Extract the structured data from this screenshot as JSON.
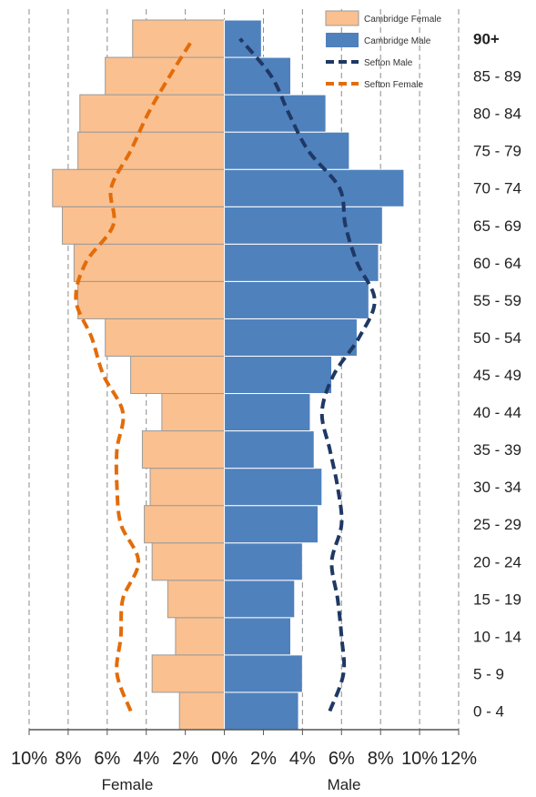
{
  "chart_data": {
    "type": "bar",
    "subtype": "population-pyramid",
    "title": "",
    "xlabel_left": "Female",
    "xlabel_right": "Male",
    "x_tick_labels": [
      "10%",
      "8%",
      "6%",
      "4%",
      "2%",
      "0%",
      "2%",
      "4%",
      "6%",
      "8%",
      "10%",
      "12%"
    ],
    "x_range_percent": [
      -10,
      12
    ],
    "categories": [
      "0 - 4",
      "5 - 9",
      "10 - 14",
      "15 - 19",
      "20 - 24",
      "25 - 29",
      "30 - 34",
      "35 - 39",
      "40 - 44",
      "45 - 49",
      "50 - 54",
      "55 - 59",
      "60 - 64",
      "65 - 69",
      "70 - 74",
      "75 - 79",
      "80 - 84",
      "85 - 89",
      "90+"
    ],
    "grid": "vertical dashed",
    "legend_position": "top-right",
    "series": [
      {
        "name": "Cambridge Female",
        "kind": "bar",
        "side": "left",
        "color": "#FAC090",
        "values": [
          2.3,
          3.7,
          2.5,
          2.9,
          3.7,
          4.1,
          3.8,
          4.2,
          3.2,
          4.8,
          6.1,
          7.5,
          7.7,
          8.3,
          8.8,
          7.5,
          7.4,
          6.1,
          4.7
        ]
      },
      {
        "name": "Cambridge Male",
        "kind": "bar",
        "side": "right",
        "color": "#4F81BD",
        "values": [
          3.8,
          4.0,
          3.4,
          3.6,
          4.0,
          4.8,
          5.0,
          4.6,
          4.4,
          5.5,
          6.8,
          7.4,
          7.9,
          8.1,
          9.2,
          6.4,
          5.2,
          3.4,
          1.9
        ]
      },
      {
        "name": "Sefton Male",
        "kind": "line",
        "side": "right",
        "color": "#1F3864",
        "values": [
          5.4,
          6.1,
          6.0,
          5.8,
          5.5,
          6.0,
          5.8,
          5.4,
          5.0,
          5.6,
          6.9,
          7.7,
          6.8,
          6.2,
          5.9,
          4.3,
          3.3,
          2.4,
          0.8
        ]
      },
      {
        "name": "Sefton Female",
        "kind": "line",
        "side": "left",
        "color": "#E36C09",
        "values": [
          4.8,
          5.5,
          5.3,
          5.2,
          4.4,
          5.3,
          5.5,
          5.5,
          5.2,
          6.2,
          6.8,
          7.6,
          7.1,
          5.7,
          5.8,
          4.8,
          3.9,
          2.8,
          1.6
        ]
      }
    ]
  }
}
